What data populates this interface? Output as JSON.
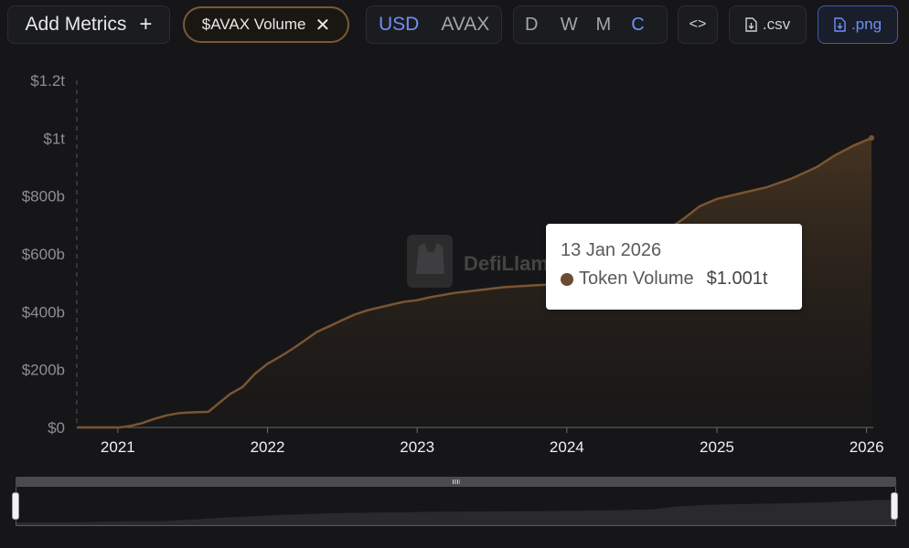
{
  "toolbar": {
    "add_metrics_label": "Add Metrics",
    "add_icon": "+",
    "metric_chip_label": "$AVAX Volume",
    "remove_icon": "✕",
    "currency_options": [
      "USD",
      "AVAX"
    ],
    "currency_selected": "USD",
    "period_options": [
      "D",
      "W",
      "M",
      "C"
    ],
    "period_selected": "C",
    "embed_label": "<>",
    "csv_label": ".csv",
    "png_label": ".png"
  },
  "watermark": "DefiLlama",
  "tooltip": {
    "date": "13 Jan 2026",
    "series_name": "Token Volume",
    "value": "$1.001t"
  },
  "colors": {
    "series": "#7a5532",
    "accent": "#6f8ff4",
    "background": "#161618"
  },
  "chart_data": {
    "type": "area",
    "title": "",
    "xlabel": "",
    "ylabel": "",
    "x_ticks": [
      "2021",
      "2022",
      "2023",
      "2024",
      "2025",
      "2026"
    ],
    "y_ticks": [
      "$0",
      "$200b",
      "$400b",
      "$600b",
      "$800b",
      "$1t",
      "$1.2t"
    ],
    "ylim": [
      0,
      1200
    ],
    "y_unit": "billion USD",
    "xlim": [
      "2020-09-23",
      "2026-01-13"
    ],
    "cumulative": true,
    "series": [
      {
        "name": "Token Volume",
        "points": [
          [
            "2020-09-23",
            0
          ],
          [
            "2020-12-01",
            0
          ],
          [
            "2021-01-05",
            0
          ],
          [
            "2021-02-01",
            5
          ],
          [
            "2021-03-01",
            15
          ],
          [
            "2021-04-01",
            30
          ],
          [
            "2021-05-01",
            42
          ],
          [
            "2021-06-01",
            50
          ],
          [
            "2021-07-01",
            52
          ],
          [
            "2021-08-10",
            54
          ],
          [
            "2021-09-01",
            80
          ],
          [
            "2021-10-01",
            115
          ],
          [
            "2021-11-01",
            140
          ],
          [
            "2021-12-01",
            185
          ],
          [
            "2022-01-01",
            220
          ],
          [
            "2022-02-01",
            245
          ],
          [
            "2022-03-01",
            270
          ],
          [
            "2022-04-01",
            300
          ],
          [
            "2022-05-01",
            330
          ],
          [
            "2022-06-01",
            350
          ],
          [
            "2022-07-01",
            370
          ],
          [
            "2022-08-01",
            390
          ],
          [
            "2022-09-01",
            405
          ],
          [
            "2022-10-01",
            415
          ],
          [
            "2022-11-01",
            425
          ],
          [
            "2022-12-01",
            435
          ],
          [
            "2023-01-01",
            440
          ],
          [
            "2023-02-01",
            450
          ],
          [
            "2023-04-01",
            465
          ],
          [
            "2023-06-01",
            475
          ],
          [
            "2023-08-01",
            485
          ],
          [
            "2023-10-01",
            490
          ],
          [
            "2023-12-01",
            495
          ],
          [
            "2024-02-01",
            510
          ],
          [
            "2024-04-01",
            525
          ],
          [
            "2024-06-01",
            545
          ],
          [
            "2024-08-01",
            580
          ],
          [
            "2024-09-15",
            695
          ],
          [
            "2024-10-15",
            725
          ],
          [
            "2024-11-20",
            765
          ],
          [
            "2025-01-01",
            790
          ],
          [
            "2025-03-01",
            810
          ],
          [
            "2025-05-01",
            830
          ],
          [
            "2025-07-01",
            860
          ],
          [
            "2025-09-01",
            900
          ],
          [
            "2025-10-15",
            940
          ],
          [
            "2025-12-01",
            975
          ],
          [
            "2026-01-13",
            1001
          ]
        ]
      }
    ]
  }
}
